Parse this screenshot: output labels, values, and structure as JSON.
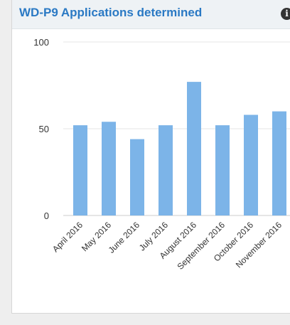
{
  "widget": {
    "title": "WD-P9 Applications determined",
    "info_icon": "info-icon"
  },
  "colors": {
    "bar": "#7cb4e8",
    "title": "#2a79c4",
    "grid": "#e6e6e6"
  },
  "chart_data": {
    "type": "bar",
    "title": "WD-P9 Applications determined",
    "categories": [
      "April 2016",
      "May 2016",
      "June 2016",
      "July 2016",
      "August 2016",
      "September 2016",
      "October 2016",
      "November 2016"
    ],
    "values": [
      52,
      54,
      44,
      52,
      77,
      52,
      58,
      60
    ],
    "xlabel": "",
    "ylabel": "",
    "ylim": [
      0,
      100
    ],
    "yticks": [
      0,
      50,
      100
    ],
    "grid": true,
    "legend": "none"
  }
}
